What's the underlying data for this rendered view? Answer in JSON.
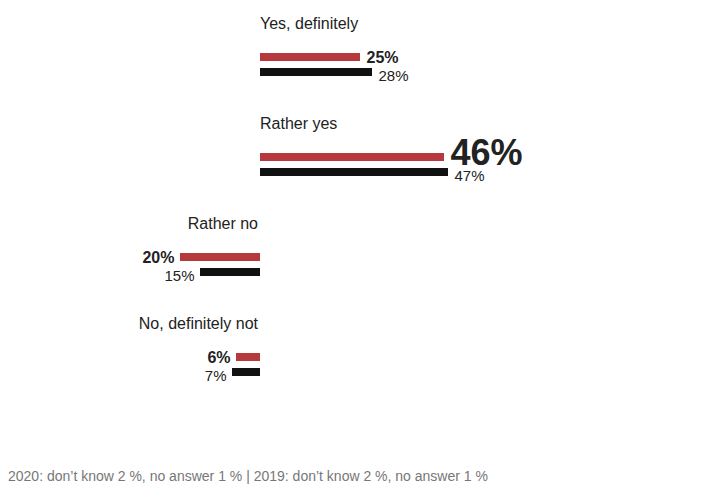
{
  "chart_data": {
    "type": "bar",
    "orientation": "horizontal",
    "categories": [
      "Yes, definitely",
      "Rather yes",
      "Rather no",
      "No, definitely not"
    ],
    "series": [
      {
        "name": "2020",
        "color": "#b5393d",
        "values": [
          25,
          46,
          20,
          6
        ],
        "value_labels": [
          "25%",
          "46%",
          "20%",
          "6%"
        ]
      },
      {
        "name": "2019",
        "color": "#111111",
        "values": [
          28,
          47,
          15,
          7
        ],
        "value_labels": [
          "28%",
          "47%",
          "15%",
          "7%"
        ]
      }
    ],
    "data_labels": true,
    "tick_labels": false,
    "caption": "2020: don’t know 2 %, no answer 1 % | 2019: don’t know 2 %, no answer 1 %"
  }
}
